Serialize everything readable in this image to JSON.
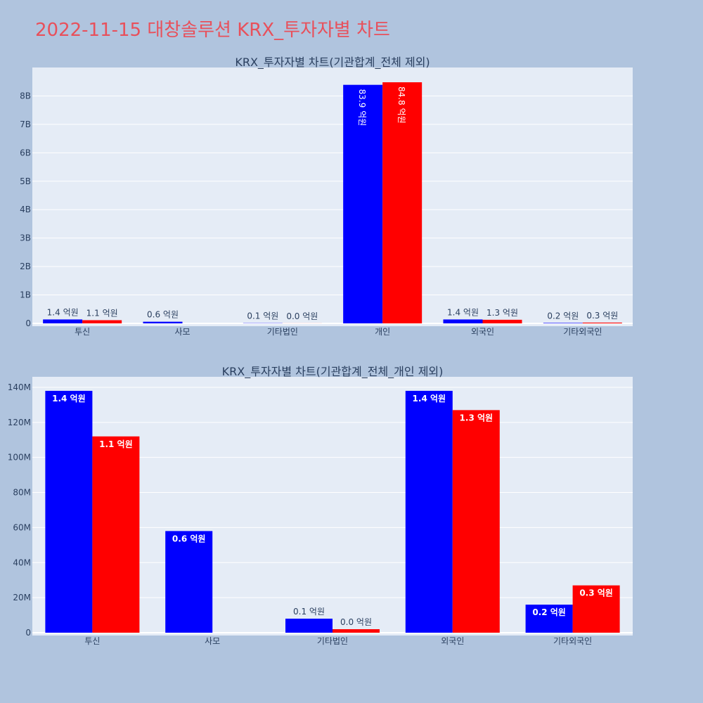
{
  "page": {
    "title": "2022-11-15 대창솔루션 KRX_투자자별 차트",
    "title_color": "#e8505b",
    "background": "#b0c4de"
  },
  "colors": {
    "series1": "#0000ff",
    "series2": "#ff0000",
    "plot_bg": "#e5ecf6",
    "grid": "#ffffff"
  },
  "chart_data": [
    {
      "type": "bar",
      "title": "KRX_투자자별 차트(기관합계_전체 제외)",
      "categories": [
        "투신",
        "사모",
        "기타법인",
        "개인",
        "외국인",
        "기타외국인"
      ],
      "series": [
        {
          "values": [
            138000000,
            58000000,
            8000000,
            8390000000,
            138000000,
            16000000
          ],
          "labels": [
            "1.4 억원",
            "0.6 억원",
            "0.1 억원",
            "83.9 억원",
            "1.4 억원",
            "0.2 억원"
          ]
        },
        {
          "values": [
            112000000,
            0,
            2000000,
            8480000000,
            127000000,
            27000000
          ],
          "labels": [
            "1.1 억원",
            "",
            "0.0 억원",
            "84.8 억원",
            "1.3 억원",
            "0.3 억원"
          ]
        }
      ],
      "yticks": [
        "0",
        "1B",
        "2B",
        "3B",
        "4B",
        "5B",
        "6B",
        "7B",
        "8B"
      ],
      "ylim": [
        0,
        9000000000
      ],
      "grid": true
    },
    {
      "type": "bar",
      "title": "KRX_투자자별 차트(기관합계_전체_개인 제외)",
      "categories": [
        "투신",
        "사모",
        "기타법인",
        "외국인",
        "기타외국인"
      ],
      "series": [
        {
          "values": [
            138000000,
            58000000,
            8000000,
            138000000,
            16000000
          ],
          "labels": [
            "1.4 억원",
            "0.6 억원",
            "0.1 억원",
            "1.4 억원",
            "0.2 억원"
          ]
        },
        {
          "values": [
            112000000,
            0,
            2000000,
            127000000,
            27000000
          ],
          "labels": [
            "1.1 억원",
            "",
            "0.0 억원",
            "1.3 억원",
            "0.3 억원"
          ]
        }
      ],
      "yticks": [
        "0",
        "20M",
        "40M",
        "60M",
        "80M",
        "100M",
        "120M",
        "140M"
      ],
      "ylim": [
        0,
        146000000
      ],
      "grid": true
    }
  ]
}
